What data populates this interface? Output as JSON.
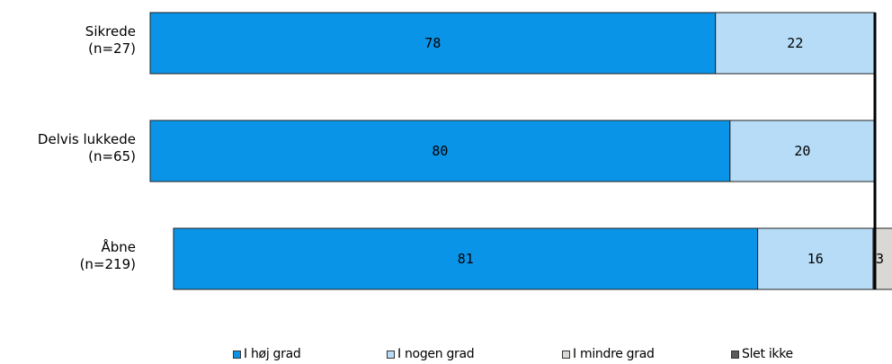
{
  "chart_data": {
    "type": "bar",
    "orientation": "horizontal",
    "stacked": true,
    "categories": [
      "Sikrede\n(n=27)",
      "Delvis lukkede\n(n=65)",
      "Åbne\n(n=219)"
    ],
    "category_lines": [
      [
        "Sikrede",
        "(n=27)"
      ],
      [
        "Delvis lukkede",
        "(n=65)"
      ],
      [
        "Åbne",
        "(n=219)"
      ]
    ],
    "series": [
      {
        "name": "I høj grad",
        "values": [
          78,
          80,
          81
        ],
        "color": "#0a94e8"
      },
      {
        "name": "I nogen grad",
        "values": [
          22,
          20,
          16
        ],
        "color": "#b7dcf7"
      },
      {
        "name": "I mindre grad",
        "values": [
          0,
          0,
          3
        ],
        "color": "#d9d8d4"
      },
      {
        "name": "Slet ikke",
        "values": [
          0,
          0,
          0
        ],
        "color": "#5b5b5b"
      }
    ],
    "data_labels": [
      [
        "78",
        "22",
        "",
        ""
      ],
      [
        "80",
        "20",
        "",
        ""
      ],
      [
        "81",
        "16",
        "3",
        ""
      ]
    ],
    "xlim": [
      0,
      100
    ],
    "legend_position": "bottom",
    "grid": false
  }
}
